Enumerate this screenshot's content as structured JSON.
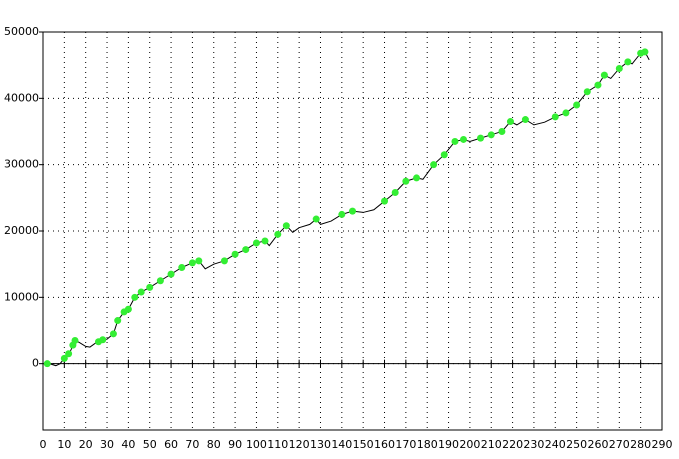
{
  "chart_data": {
    "type": "line",
    "xlim": [
      0,
      290
    ],
    "ylim": [
      -10000,
      50000
    ],
    "xticks": [
      0,
      10,
      20,
      30,
      40,
      50,
      60,
      70,
      80,
      90,
      100,
      110,
      120,
      130,
      140,
      150,
      160,
      170,
      180,
      190,
      200,
      210,
      220,
      230,
      240,
      250,
      260,
      270,
      280,
      290
    ],
    "yticks": [
      0,
      10000,
      20000,
      30000,
      40000,
      50000
    ],
    "grid": true,
    "series": [
      {
        "color": "#000000",
        "markers": false,
        "x": [
          0,
          3,
          6,
          8,
          10,
          13,
          15,
          17,
          20,
          22,
          25,
          28,
          30,
          33,
          35,
          38,
          40,
          43,
          46,
          50,
          55,
          60,
          65,
          70,
          73,
          76,
          80,
          85,
          90,
          95,
          100,
          104,
          106,
          110,
          114,
          117,
          120,
          125,
          128,
          130,
          135,
          140,
          145,
          150,
          155,
          160,
          165,
          170,
          175,
          178,
          183,
          188,
          193,
          197,
          200,
          205,
          210,
          215,
          219,
          222,
          226,
          230,
          235,
          240,
          245,
          250,
          255,
          260,
          263,
          266,
          270,
          274,
          276,
          280,
          282,
          284
        ],
        "values": [
          0,
          0,
          -300,
          0,
          800,
          2000,
          3500,
          3200,
          2600,
          2500,
          3200,
          3600,
          3700,
          4500,
          6500,
          7800,
          8200,
          10000,
          10800,
          11500,
          12500,
          13500,
          14500,
          15200,
          15500,
          14300,
          15000,
          15500,
          16500,
          17200,
          18200,
          18500,
          17800,
          19500,
          20800,
          19800,
          20500,
          21000,
          21800,
          21000,
          21500,
          22500,
          23000,
          22800,
          23200,
          24500,
          25800,
          27500,
          28000,
          27800,
          30000,
          31500,
          33500,
          33800,
          33500,
          34000,
          34500,
          35000,
          36500,
          36000,
          36800,
          36000,
          36400,
          37200,
          37800,
          39000,
          41000,
          42000,
          43500,
          43000,
          44500,
          45500,
          45200,
          46800,
          47000,
          45800
        ]
      },
      {
        "color": "#33ee33",
        "markers": true,
        "x": [
          2,
          10,
          12,
          14,
          15,
          26,
          28,
          33,
          35,
          38,
          40,
          43,
          46,
          50,
          55,
          60,
          65,
          70,
          73,
          85,
          90,
          95,
          100,
          104,
          110,
          114,
          128,
          140,
          145,
          160,
          165,
          170,
          175,
          183,
          188,
          193,
          197,
          205,
          210,
          215,
          219,
          226,
          240,
          245,
          250,
          255,
          260,
          263,
          270,
          274,
          280,
          282
        ],
        "values": [
          0,
          800,
          1500,
          2800,
          3500,
          3300,
          3600,
          4500,
          6500,
          7800,
          8200,
          10000,
          10800,
          11500,
          12500,
          13500,
          14500,
          15200,
          15500,
          15500,
          16500,
          17200,
          18200,
          18500,
          19500,
          20800,
          21800,
          22500,
          23000,
          24500,
          25800,
          27500,
          28000,
          30000,
          31500,
          33500,
          33800,
          34000,
          34500,
          35000,
          36500,
          36800,
          37200,
          37800,
          39000,
          41000,
          42000,
          43500,
          44500,
          45500,
          46800,
          47000
        ]
      }
    ]
  }
}
